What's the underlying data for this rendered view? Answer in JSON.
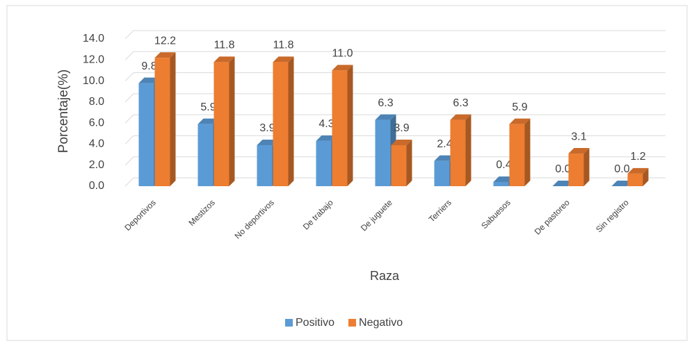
{
  "chart_data": {
    "type": "bar3d",
    "y_label": "Porcentaje(%)",
    "x_label": "Raza",
    "categories": [
      "Deportivos",
      "Mestizos",
      "No deportivos",
      "De trabajo",
      "De juguete",
      "Terriers",
      "Sabuesos",
      "De pastoreo",
      "Sin registro"
    ],
    "series": [
      {
        "name": "Positivo",
        "color": "#5b9bd5",
        "values": [
          9.8,
          5.9,
          3.9,
          4.3,
          6.3,
          2.4,
          0.4,
          0,
          0
        ],
        "value_labels": [
          "9.8",
          "5.9",
          "3.9",
          "4.3",
          "6.3",
          "2.4",
          "0.4",
          "0.0",
          "0.0"
        ]
      },
      {
        "name": "Negativo",
        "color": "#ed7d31",
        "values": [
          12.2,
          11.8,
          11.8,
          11.0,
          3.9,
          6.3,
          5.9,
          3.1,
          1.2
        ],
        "value_labels": [
          "12.2",
          "11.8",
          "11.8",
          "11.0",
          "3.9",
          "6.3",
          "5.9",
          "3.1",
          "1.2"
        ]
      }
    ],
    "ylim": [
      0,
      14
    ],
    "yticks": [
      {
        "value": 0,
        "label": "0.0"
      },
      {
        "value": 2,
        "label": "2.0"
      },
      {
        "value": 4,
        "label": "4.0"
      },
      {
        "value": 6,
        "label": "6.0"
      },
      {
        "value": 8,
        "label": "8.0"
      },
      {
        "value": 10,
        "label": "10.0"
      },
      {
        "value": 12,
        "label": "12.0"
      },
      {
        "value": 14,
        "label": "14.0"
      }
    ],
    "grid": true,
    "legend": "bottom"
  }
}
